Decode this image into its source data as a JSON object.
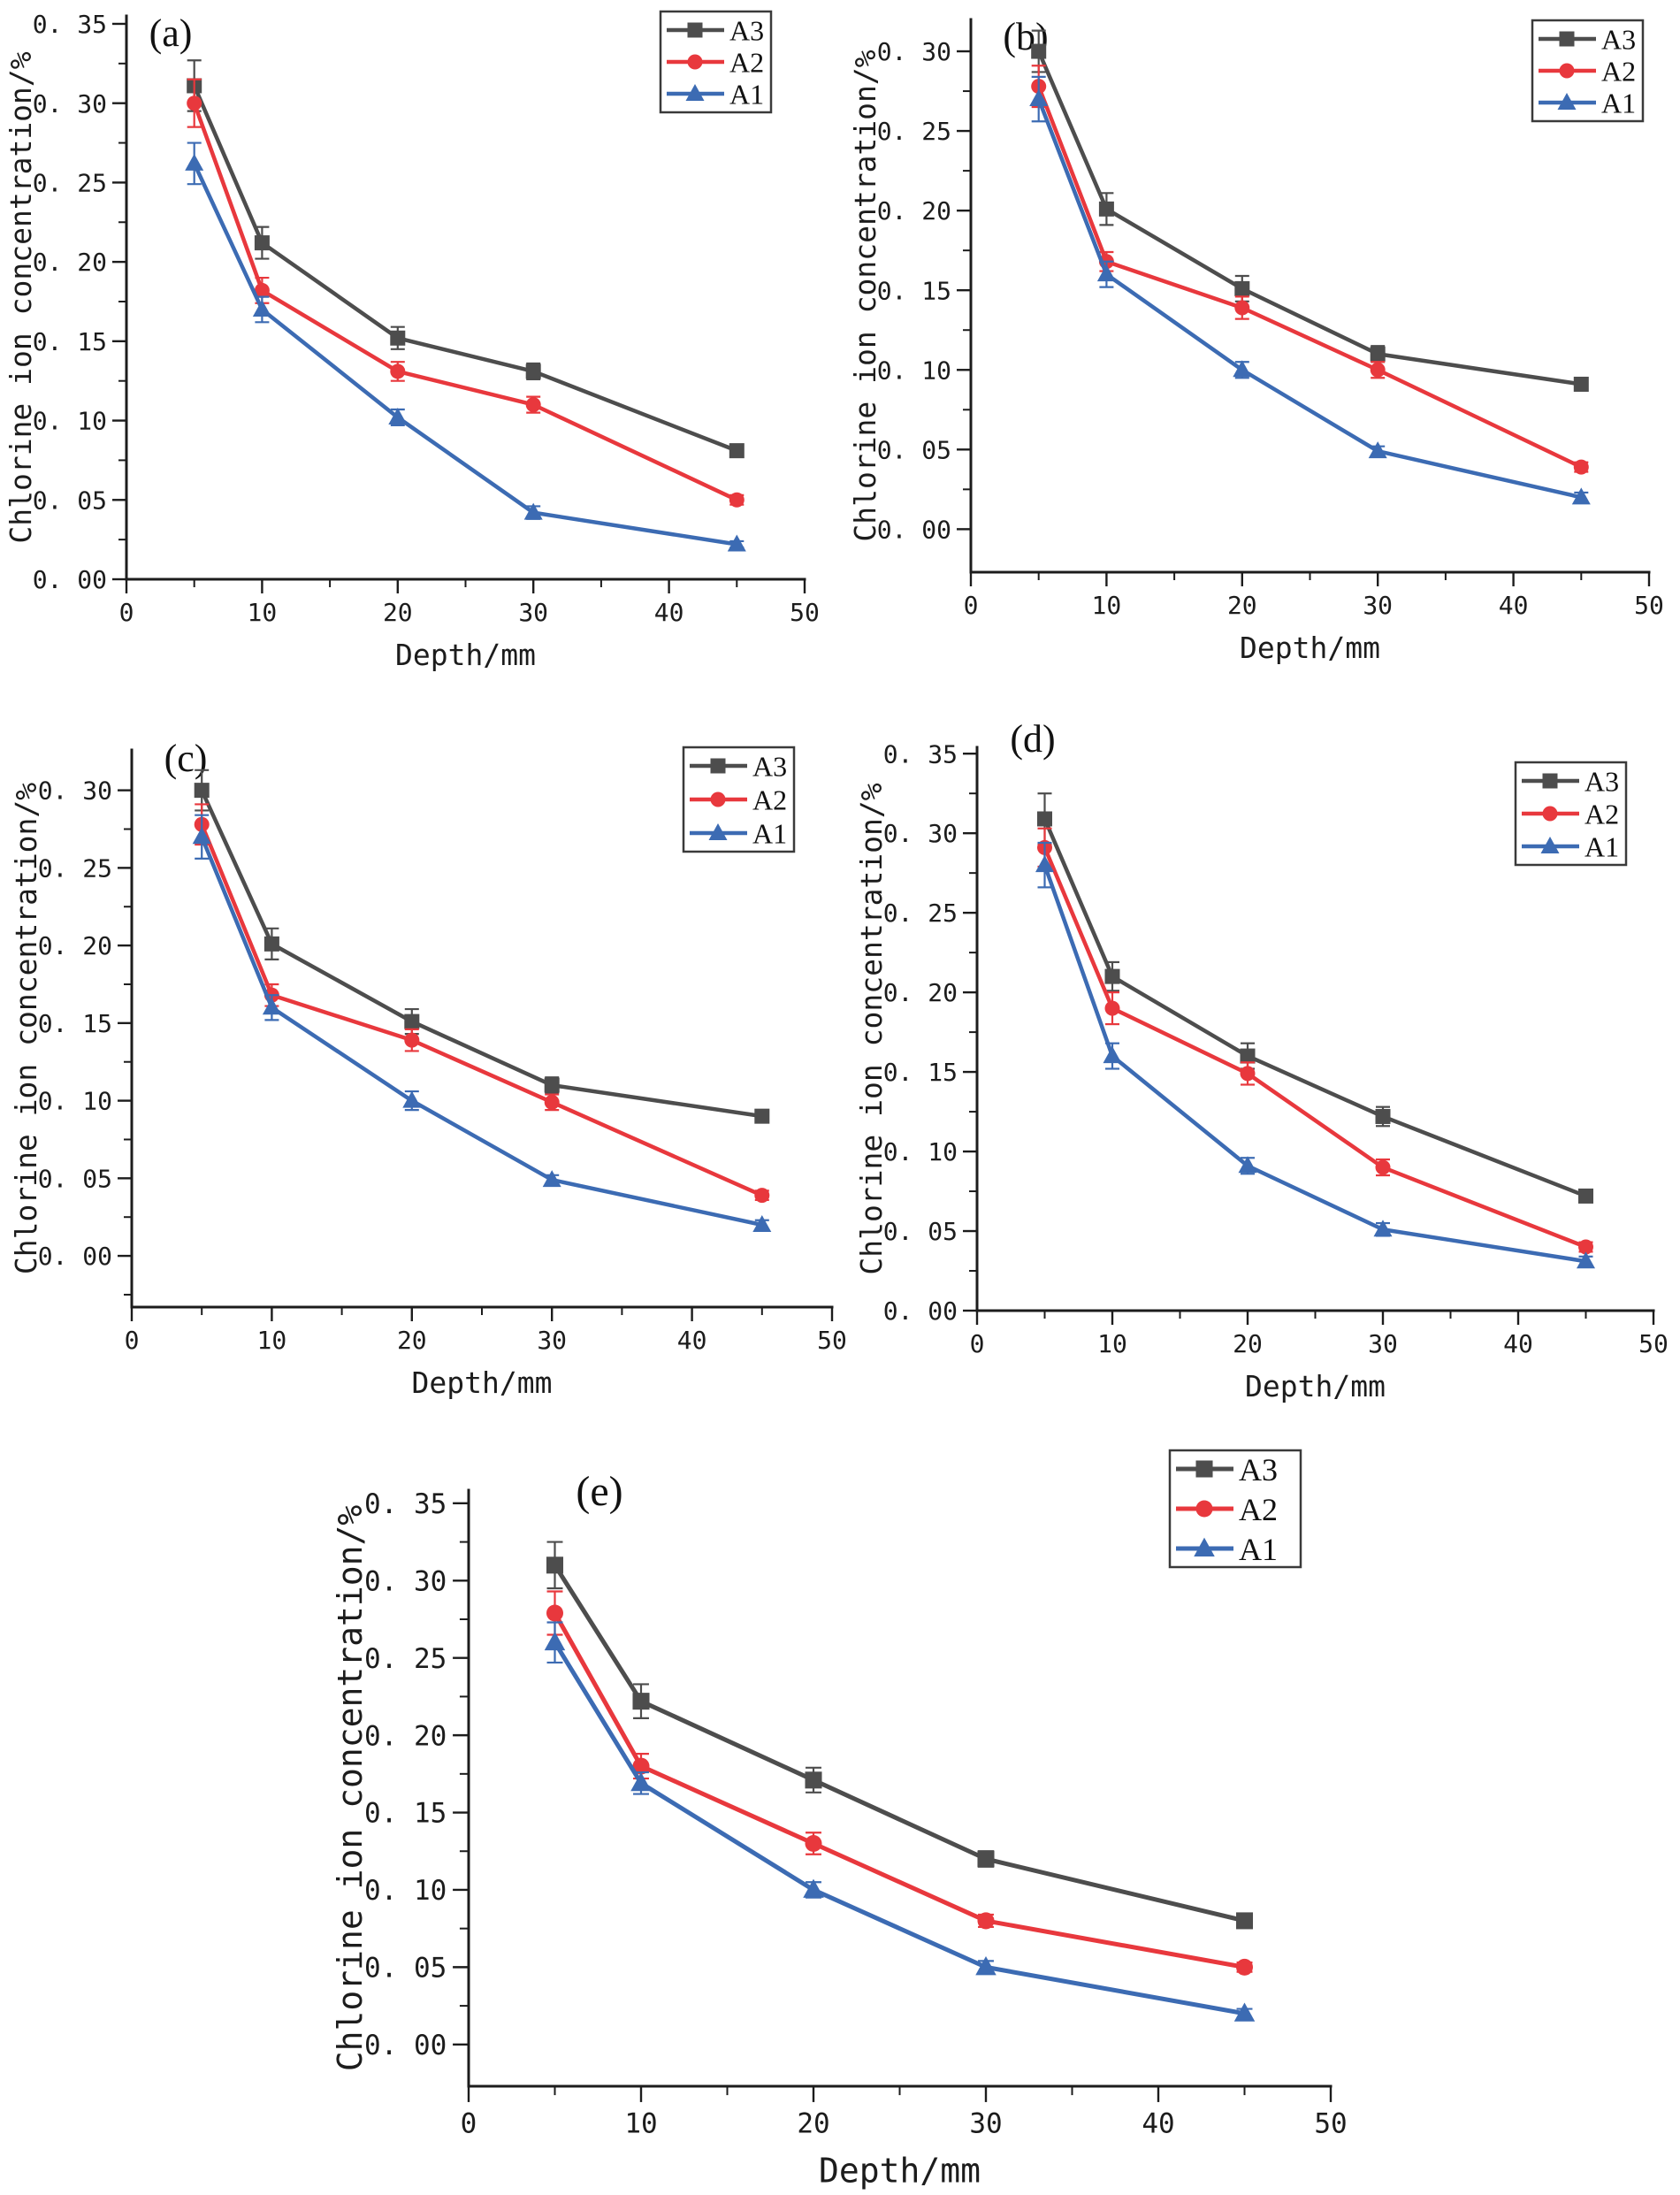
{
  "figure": {
    "background": "#ffffff",
    "text_color": "#1c1c1c",
    "series_colors": {
      "A3": "#4d4d4d",
      "A2": "#e8383d",
      "A1": "#3c6bb3"
    },
    "series_markers": {
      "A3": "square",
      "A2": "circle",
      "A1": "triangle"
    }
  },
  "chart_data": [
    {
      "type": "line",
      "panel": "(a)",
      "xlabel": "Depth/mm",
      "ylabel": "Chlorine ion concentration/%",
      "x": [
        5,
        10,
        20,
        30,
        45
      ],
      "xlim": [
        0,
        50
      ],
      "xticks": [
        0,
        10,
        20,
        30,
        40,
        50
      ],
      "xtick_labels": [
        "0",
        "10",
        "20",
        "30",
        "40",
        "50"
      ],
      "xminor": [
        5,
        15,
        25,
        35,
        45
      ],
      "ylim": [
        0,
        0.355
      ],
      "yticks": [
        0.0,
        0.05,
        0.1,
        0.15,
        0.2,
        0.25,
        0.3,
        0.35
      ],
      "ytick_labels": [
        "0. 00",
        "0. 05",
        "0. 10",
        "0. 15",
        "0. 20",
        "0. 25",
        "0. 30",
        "0. 35"
      ],
      "legend": {
        "position": "top-right",
        "entries": [
          "A3",
          "A2",
          "A1"
        ]
      },
      "series": [
        {
          "name": "A3",
          "color": "#4d4d4d",
          "marker": "square",
          "values": [
            0.311,
            0.212,
            0.152,
            0.131,
            0.081
          ],
          "errors": [
            0.016,
            0.01,
            0.007,
            0.005,
            0.004
          ]
        },
        {
          "name": "A2",
          "color": "#e8383d",
          "marker": "circle",
          "values": [
            0.3,
            0.182,
            0.131,
            0.11,
            0.05
          ],
          "errors": [
            0.015,
            0.008,
            0.006,
            0.005,
            0.003
          ]
        },
        {
          "name": "A1",
          "color": "#3c6bb3",
          "marker": "triangle",
          "values": [
            0.262,
            0.17,
            0.102,
            0.042,
            0.022
          ],
          "errors": [
            0.013,
            0.008,
            0.005,
            0.004,
            0.002
          ]
        }
      ]
    },
    {
      "type": "line",
      "panel": "(b)",
      "xlabel": "Depth/mm",
      "ylabel": "Chlorine ion concentration/%",
      "x": [
        5,
        10,
        20,
        30,
        45
      ],
      "xlim": [
        0,
        50
      ],
      "xticks": [
        0,
        10,
        20,
        30,
        40,
        50
      ],
      "xtick_labels": [
        "0",
        "10",
        "20",
        "30",
        "40",
        "50"
      ],
      "xminor": [
        5,
        15,
        25,
        35,
        45
      ],
      "ylim": [
        -0.027,
        0.32
      ],
      "yticks": [
        0.0,
        0.05,
        0.1,
        0.15,
        0.2,
        0.25,
        0.3
      ],
      "ytick_labels": [
        "0. 00",
        "0. 05",
        "0. 10",
        "0. 15",
        "0. 20",
        "0. 25",
        "0. 30"
      ],
      "legend": {
        "position": "top-right",
        "entries": [
          "A3",
          "A2",
          "A1"
        ]
      },
      "series": [
        {
          "name": "A3",
          "color": "#4d4d4d",
          "marker": "square",
          "values": [
            0.3,
            0.201,
            0.151,
            0.11,
            0.091
          ],
          "errors": [
            0.013,
            0.01,
            0.008,
            0.005,
            0.004
          ]
        },
        {
          "name": "A2",
          "color": "#e8383d",
          "marker": "circle",
          "values": [
            0.278,
            0.168,
            0.139,
            0.1,
            0.039
          ],
          "errors": [
            0.013,
            0.006,
            0.007,
            0.005,
            0.003
          ]
        },
        {
          "name": "A1",
          "color": "#3c6bb3",
          "marker": "triangle",
          "values": [
            0.27,
            0.16,
            0.1,
            0.049,
            0.02
          ],
          "errors": [
            0.014,
            0.008,
            0.005,
            0.003,
            0.003
          ]
        }
      ]
    },
    {
      "type": "line",
      "panel": "(c)",
      "xlabel": "Depth/mm",
      "ylabel": "Chlorine ion concentration/%",
      "x": [
        5,
        10,
        20,
        30,
        45
      ],
      "xlim": [
        0,
        50
      ],
      "xticks": [
        0,
        10,
        20,
        30,
        40,
        50
      ],
      "xtick_labels": [
        "0",
        "10",
        "20",
        "30",
        "40",
        "50"
      ],
      "xminor": [
        5,
        15,
        25,
        35,
        45
      ],
      "ylim": [
        -0.033,
        0.326
      ],
      "yticks": [
        0.0,
        0.05,
        0.1,
        0.15,
        0.2,
        0.25,
        0.3
      ],
      "ytick_labels": [
        "0. 00",
        "0. 05",
        "0. 10",
        "0. 15",
        "0. 20",
        "0. 25",
        "0. 30"
      ],
      "legend": {
        "position": "top-right",
        "entries": [
          "A3",
          "A2",
          "A1"
        ]
      },
      "series": [
        {
          "name": "A3",
          "color": "#4d4d4d",
          "marker": "square",
          "values": [
            0.3,
            0.201,
            0.151,
            0.11,
            0.09
          ],
          "errors": [
            0.013,
            0.01,
            0.008,
            0.005,
            0.004
          ]
        },
        {
          "name": "A2",
          "color": "#e8383d",
          "marker": "circle",
          "values": [
            0.278,
            0.168,
            0.139,
            0.099,
            0.039
          ],
          "errors": [
            0.013,
            0.007,
            0.007,
            0.005,
            0.003
          ]
        },
        {
          "name": "A1",
          "color": "#3c6bb3",
          "marker": "triangle",
          "values": [
            0.27,
            0.16,
            0.1,
            0.049,
            0.02
          ],
          "errors": [
            0.014,
            0.008,
            0.006,
            0.003,
            0.003
          ]
        }
      ]
    },
    {
      "type": "line",
      "panel": "(d)",
      "xlabel": "Depth/mm",
      "ylabel": "Chlorine ion concentration/%",
      "x": [
        5,
        10,
        20,
        30,
        45
      ],
      "xlim": [
        0,
        50
      ],
      "xticks": [
        0,
        10,
        20,
        30,
        40,
        50
      ],
      "xtick_labels": [
        "0",
        "10",
        "20",
        "30",
        "40",
        "50"
      ],
      "xminor": [
        5,
        15,
        25,
        35,
        45
      ],
      "ylim": [
        0,
        0.354
      ],
      "yticks": [
        0.0,
        0.05,
        0.1,
        0.15,
        0.2,
        0.25,
        0.3,
        0.35
      ],
      "ytick_labels": [
        "0. 00",
        "0. 05",
        "0. 10",
        "0. 15",
        "0. 20",
        "0. 25",
        "0. 30",
        "0. 35"
      ],
      "legend": {
        "position": "top-right",
        "entries": [
          "A3",
          "A2",
          "A1"
        ]
      },
      "series": [
        {
          "name": "A3",
          "color": "#4d4d4d",
          "marker": "square",
          "values": [
            0.309,
            0.21,
            0.16,
            0.122,
            0.072
          ],
          "errors": [
            0.016,
            0.009,
            0.008,
            0.006,
            0.003
          ]
        },
        {
          "name": "A2",
          "color": "#e8383d",
          "marker": "circle",
          "values": [
            0.291,
            0.19,
            0.149,
            0.09,
            0.04
          ],
          "errors": [
            0.012,
            0.01,
            0.007,
            0.005,
            0.003
          ]
        },
        {
          "name": "A1",
          "color": "#3c6bb3",
          "marker": "triangle",
          "values": [
            0.28,
            0.16,
            0.091,
            0.051,
            0.031
          ],
          "errors": [
            0.014,
            0.008,
            0.005,
            0.004,
            0.003
          ]
        }
      ]
    },
    {
      "type": "line",
      "panel": "(e)",
      "xlabel": "Depth/mm",
      "ylabel": "Chlorine ion concentration/%",
      "x": [
        5,
        10,
        20,
        30,
        45
      ],
      "xlim": [
        0,
        50
      ],
      "xticks": [
        0,
        10,
        20,
        30,
        40,
        50
      ],
      "xtick_labels": [
        "0",
        "10",
        "20",
        "30",
        "40",
        "50"
      ],
      "xminor": [
        5,
        15,
        25,
        35,
        45
      ],
      "ylim": [
        -0.027,
        0.3585
      ],
      "yticks": [
        0.0,
        0.05,
        0.1,
        0.15,
        0.2,
        0.25,
        0.3,
        0.35
      ],
      "ytick_labels": [
        "0. 00",
        "0. 05",
        "0. 10",
        "0. 15",
        "0. 20",
        "0. 25",
        "0. 30",
        "0. 35"
      ],
      "legend": {
        "position": "top-right",
        "entries": [
          "A3",
          "A2",
          "A1"
        ]
      },
      "series": [
        {
          "name": "A3",
          "color": "#4d4d4d",
          "marker": "square",
          "values": [
            0.31,
            0.222,
            0.171,
            0.12,
            0.08
          ],
          "errors": [
            0.015,
            0.011,
            0.008,
            0.005,
            0.003
          ]
        },
        {
          "name": "A2",
          "color": "#e8383d",
          "marker": "circle",
          "values": [
            0.279,
            0.18,
            0.13,
            0.08,
            0.05
          ],
          "errors": [
            0.014,
            0.008,
            0.007,
            0.004,
            0.003
          ]
        },
        {
          "name": "A1",
          "color": "#3c6bb3",
          "marker": "triangle",
          "values": [
            0.26,
            0.169,
            0.1,
            0.05,
            0.02
          ],
          "errors": [
            0.013,
            0.007,
            0.005,
            0.004,
            0.003
          ]
        }
      ]
    }
  ]
}
